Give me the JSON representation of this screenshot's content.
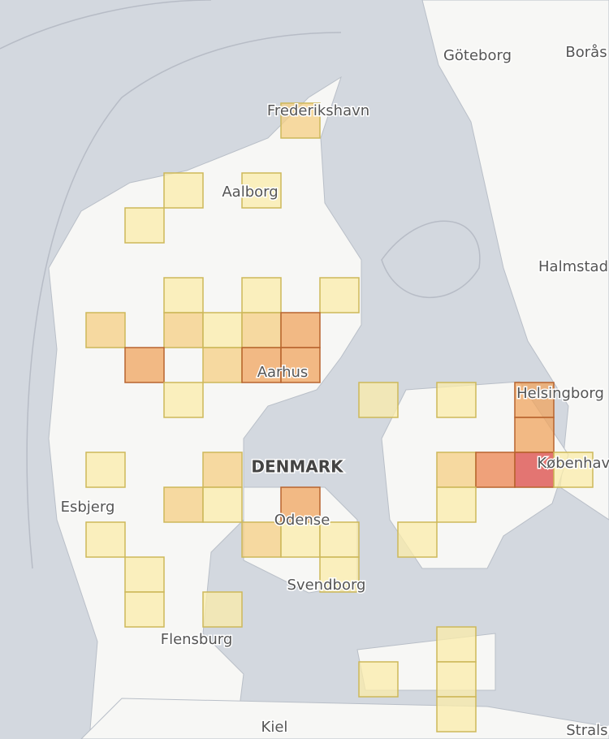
{
  "places": [
    "Göteborg",
    "Borås",
    "Frederikshavn",
    "Aalborg",
    "Halmstad",
    "Aarhus",
    "Helsingborg",
    "DENMARK",
    "København",
    "Esbjerg",
    "Odense",
    "Svendborg",
    "Flensburg",
    "Kiel",
    "Stralsund"
  ],
  "colors": [
    "#fbecaa",
    "#f6cf83",
    "#f0a45e",
    "#ec8450",
    "#dc4a45"
  ],
  "grid": [
    [
      null,
      null,
      null,
      null,
      null,
      2,
      null,
      null,
      null,
      null,
      null,
      null,
      null
    ],
    [
      null,
      null,
      null,
      null,
      null,
      null,
      null,
      null,
      null,
      null,
      null,
      null,
      null
    ],
    [
      null,
      null,
      1,
      null,
      1,
      null,
      null,
      null,
      null,
      null,
      null,
      null,
      null
    ],
    [
      null,
      1,
      null,
      null,
      null,
      null,
      null,
      null,
      null,
      null,
      null,
      null,
      null
    ],
    [
      null,
      null,
      null,
      null,
      null,
      null,
      null,
      null,
      null,
      null,
      null,
      null,
      null
    ],
    [
      null,
      null,
      1,
      null,
      1,
      null,
      1,
      null,
      null,
      null,
      null,
      null,
      null
    ],
    [
      2,
      null,
      2,
      1,
      2,
      3,
      null,
      null,
      null,
      null,
      null,
      null,
      null
    ],
    [
      null,
      3,
      null,
      2,
      3,
      3,
      null,
      null,
      null,
      null,
      null,
      null,
      null
    ],
    [
      null,
      null,
      1,
      null,
      null,
      null,
      null,
      1,
      null,
      1,
      null,
      3,
      null
    ],
    [
      null,
      null,
      null,
      null,
      null,
      null,
      null,
      null,
      null,
      null,
      null,
      3,
      null
    ],
    [
      1,
      null,
      null,
      2,
      null,
      null,
      null,
      null,
      null,
      2,
      4,
      5,
      1
    ],
    [
      null,
      null,
      2,
      1,
      null,
      3,
      null,
      null,
      null,
      1,
      null,
      null,
      null
    ],
    [
      1,
      null,
      null,
      null,
      2,
      1,
      1,
      null,
      1,
      null,
      null,
      null,
      null
    ],
    [
      null,
      1,
      null,
      null,
      null,
      null,
      1,
      null,
      null,
      null,
      null,
      null,
      null
    ],
    [
      null,
      1,
      null,
      1,
      null,
      null,
      null,
      null,
      null,
      null,
      null,
      null,
      null
    ],
    [
      null,
      null,
      null,
      null,
      null,
      null,
      null,
      null,
      null,
      1,
      null,
      null,
      null
    ],
    [
      null,
      null,
      null,
      null,
      null,
      null,
      null,
      1,
      null,
      1,
      null,
      null,
      null
    ],
    [
      null,
      null,
      null,
      null,
      null,
      null,
      null,
      null,
      null,
      1,
      null,
      null,
      null
    ]
  ]
}
